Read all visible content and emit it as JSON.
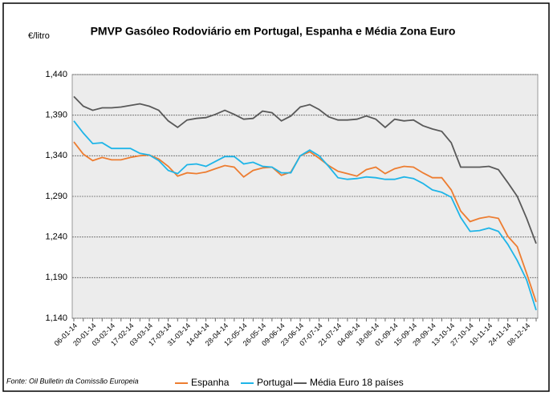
{
  "chart_data": {
    "type": "line",
    "title": "PMVP Gasóleo Rodoviário em Portugal, Espanha  e Média Zona Euro",
    "y_label": "€/litro",
    "source": "Fonte: Oil Bulletin da Comissão Europeia",
    "categories": [
      "06-01-14",
      null,
      "20-01-14",
      null,
      "03-02-14",
      null,
      "17-02-14",
      null,
      "03-03-14",
      null,
      "17-03-14",
      null,
      "31-03-14",
      null,
      "14-04-14",
      null,
      "28-04-14",
      null,
      "12-05-14",
      null,
      "26-05-14",
      null,
      "09-06-14",
      null,
      "23-06-14",
      null,
      "07-07-14",
      null,
      "21-07-14",
      null,
      "04-08-14",
      null,
      "18-08-14",
      null,
      "01-09-14",
      null,
      "15-09-14",
      null,
      "29-09-14",
      null,
      "13-10-14",
      null,
      "27-10-14",
      null,
      "10-11-14",
      null,
      "24-11-14",
      null,
      "08-12-14",
      null
    ],
    "series": [
      {
        "name": "Espanha",
        "color": "#ed7d31",
        "values": [
          1357,
          1342,
          1334,
          1338,
          1335,
          1335,
          1338,
          1340,
          1341,
          1336,
          1327,
          1315,
          1319,
          1318,
          1320,
          1324,
          1328,
          1326,
          1314,
          1322,
          1325,
          1326,
          1316,
          1320,
          1340,
          1345,
          1337,
          1328,
          1321,
          1318,
          1315,
          1323,
          1326,
          1318,
          1324,
          1327,
          1326,
          1319,
          1313,
          1313,
          1298,
          1272,
          1259,
          1263,
          1265,
          1263,
          1241,
          1228,
          1195,
          1160
        ]
      },
      {
        "name": "Portugal",
        "color": "#1fb5e8",
        "values": [
          1383,
          1368,
          1355,
          1356,
          1349,
          1349,
          1349,
          1343,
          1341,
          1334,
          1322,
          1318,
          1329,
          1330,
          1327,
          1333,
          1339,
          1339,
          1330,
          1332,
          1327,
          1326,
          1319,
          1319,
          1340,
          1347,
          1340,
          1327,
          1313,
          1311,
          1312,
          1314,
          1313,
          1311,
          1311,
          1314,
          1312,
          1306,
          1298,
          1295,
          1289,
          1264,
          1247,
          1248,
          1251,
          1247,
          1231,
          1211,
          1187,
          1150
        ]
      },
      {
        "name": "Média Euro 18 países",
        "color": "#595959",
        "values": [
          1413,
          1401,
          1396,
          1399,
          1399,
          1400,
          1402,
          1404,
          1401,
          1396,
          1383,
          1375,
          1384,
          1386,
          1387,
          1391,
          1396,
          1391,
          1385,
          1386,
          1395,
          1393,
          1383,
          1389,
          1400,
          1403,
          1397,
          1388,
          1384,
          1384,
          1385,
          1389,
          1385,
          1375,
          1385,
          1383,
          1384,
          1377,
          1373,
          1370,
          1356,
          1326,
          1326,
          1326,
          1327,
          1323,
          1307,
          1290,
          1263,
          1232
        ]
      }
    ],
    "ylim": [
      1140,
      1440
    ],
    "yticks": [
      {
        "value": 1140,
        "label": "1,140"
      },
      {
        "value": 1190,
        "label": "1,190"
      },
      {
        "value": 1240,
        "label": "1,240"
      },
      {
        "value": 1290,
        "label": "1,290"
      },
      {
        "value": 1340,
        "label": "1,340"
      },
      {
        "value": 1390,
        "label": "1,390"
      },
      {
        "value": 1440,
        "label": "1,440"
      }
    ],
    "grid": true,
    "legend": "bottom"
  }
}
